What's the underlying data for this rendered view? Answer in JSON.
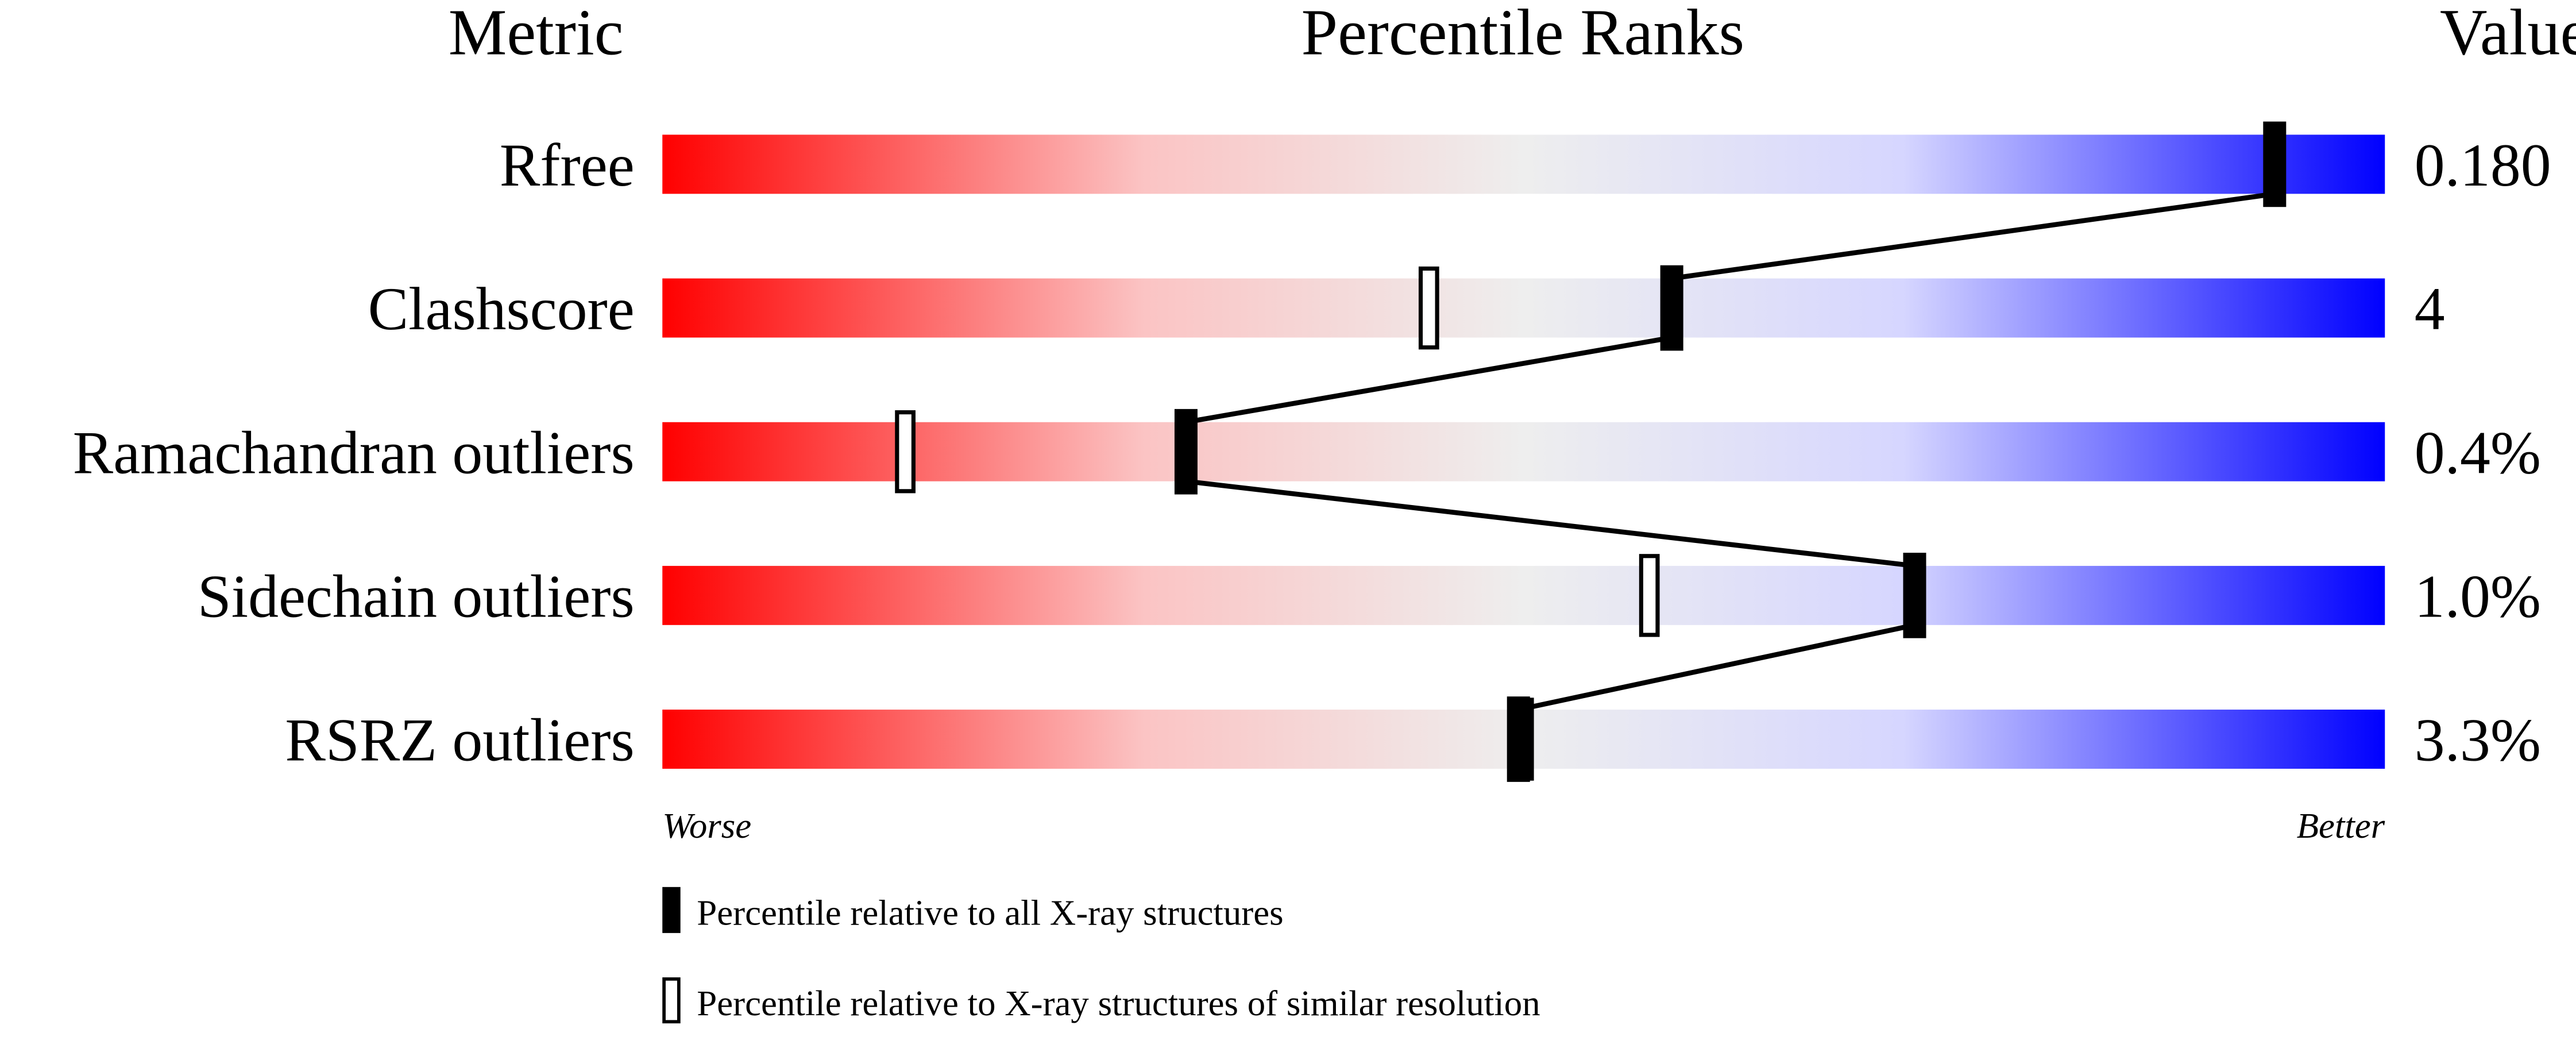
{
  "chart_data": {
    "type": "percentile-ranks",
    "headers": {
      "metric": "Metric",
      "percentile": "Percentile Ranks",
      "value": "Value"
    },
    "xlim": [
      0,
      100
    ],
    "metrics": [
      {
        "name": "Rfree",
        "value": "0.180",
        "percentile_all": 93.6,
        "percentile_similar": null
      },
      {
        "name": "Clashscore",
        "value": "4",
        "percentile_all": 58.6,
        "percentile_similar": 44.5
      },
      {
        "name": "Ramachandran outliers",
        "value": "0.4%",
        "percentile_all": 30.4,
        "percentile_similar": 14.1
      },
      {
        "name": "Sidechain outliers",
        "value": "1.0%",
        "percentile_all": 72.7,
        "percentile_similar": 57.3
      },
      {
        "name": "RSRZ outliers",
        "value": "3.3%",
        "percentile_all": 49.7,
        "percentile_similar": 50.0
      }
    ],
    "axis": {
      "worse": "Worse",
      "better": "Better"
    },
    "legend": {
      "all": "Percentile relative to all X-ray structures",
      "similar": "Percentile relative to X-ray structures of similar resolution"
    },
    "colors": {
      "worse": "#ff0000",
      "middle": "#eeeeee",
      "better": "#0000ff",
      "marker": "#000000"
    }
  }
}
